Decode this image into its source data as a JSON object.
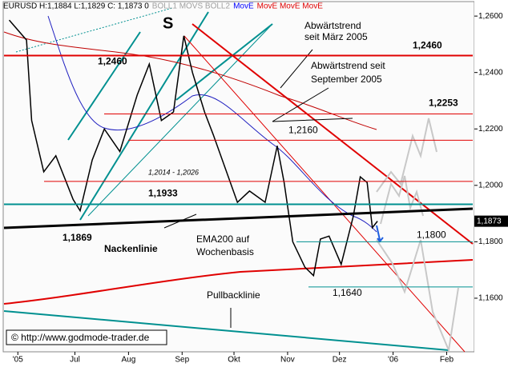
{
  "chart_data": {
    "type": "line",
    "header": [
      {
        "text": "EURUSD H:1,1884 L:1,1829 C: 1,1873 0",
        "color": "#000000"
      },
      {
        "text": "BOLL1 MOVS BOLL2",
        "color": "#a0a0a0"
      },
      {
        "text": "MovE",
        "color": "#0000ff"
      },
      {
        "text": "MovE MovE MovE",
        "color": "#e00000"
      }
    ],
    "series": [
      {
        "name": "EURUSD",
        "color": "#000000",
        "x": [
          -8,
          2,
          5,
          12,
          19,
          29,
          33,
          40,
          47,
          56,
          66,
          73,
          80,
          87,
          93,
          98,
          105,
          110,
          117,
          124,
          131,
          140,
          147,
          151,
          156,
          163,
          168,
          172,
          177,
          184,
          191,
          195,
          199,
          202,
          205
        ],
        "values": [
          1.2586,
          1.2515,
          1.223,
          1.2048,
          1.2105,
          1.195,
          1.191,
          1.209,
          1.22,
          1.212,
          1.232,
          1.243,
          1.223,
          1.226,
          1.253,
          1.24,
          1.226,
          1.218,
          1.206,
          1.194,
          1.198,
          1.194,
          1.214,
          1.201,
          1.18,
          1.171,
          1.168,
          1.181,
          1.182,
          1.172,
          1.189,
          1.203,
          1.201,
          1.185,
          1.1873
        ]
      }
    ],
    "levels": [
      {
        "value": 1.246,
        "label": "1,2460",
        "color": "#e00000"
      },
      {
        "value": 1.2253,
        "label": "1,2253",
        "color": "#e00000"
      },
      {
        "value": 1.216,
        "label": "1,2160",
        "color": "#e00000"
      },
      {
        "value": 1.2014,
        "label": "1,2014 - 1,2026",
        "color": "#e00000"
      },
      {
        "value": 1.1933,
        "label": "1,1933",
        "color": "#009090"
      },
      {
        "value": 1.1869,
        "label": "1,1869",
        "color": "#000000"
      },
      {
        "value": 1.18,
        "label": "1,1800",
        "color": "#009090"
      },
      {
        "value": 1.164,
        "label": "1,1640",
        "color": "#009090"
      }
    ],
    "last_price": {
      "value": 1.1873,
      "label": "1,1873"
    },
    "annotations": [
      "S",
      "Abwärtstrend",
      "seit März 2005",
      "Abwärtstrend seit",
      "September 2005",
      "Nackenlinie",
      "EMA200 auf",
      "Wochenbasis",
      "Pullbacklinie",
      "© http://www.godmode-trader.de"
    ],
    "xlim": [
      -11,
      261
    ],
    "xticks": [
      {
        "value": -3,
        "label": "'05"
      },
      {
        "value": 30,
        "label": "Jul"
      },
      {
        "value": 61,
        "label": "Aug"
      },
      {
        "value": 92,
        "label": "Sep"
      },
      {
        "value": 122,
        "label": "Okt"
      },
      {
        "value": 153,
        "label": "Nov"
      },
      {
        "value": 183,
        "label": "Dez"
      },
      {
        "value": 214,
        "label": "'06"
      },
      {
        "value": 245,
        "label": "Feb"
      }
    ],
    "ylim": [
      1.141,
      1.2657
    ],
    "yticks": [
      {
        "value": 1.16,
        "label": "1,1600"
      },
      {
        "value": 1.18,
        "label": "1,1800"
      },
      {
        "value": 1.2,
        "label": "1,2000"
      },
      {
        "value": 1.22,
        "label": "1,2200"
      },
      {
        "value": 1.24,
        "label": "1,2400"
      },
      {
        "value": 1.26,
        "label": "1,2600"
      }
    ]
  }
}
